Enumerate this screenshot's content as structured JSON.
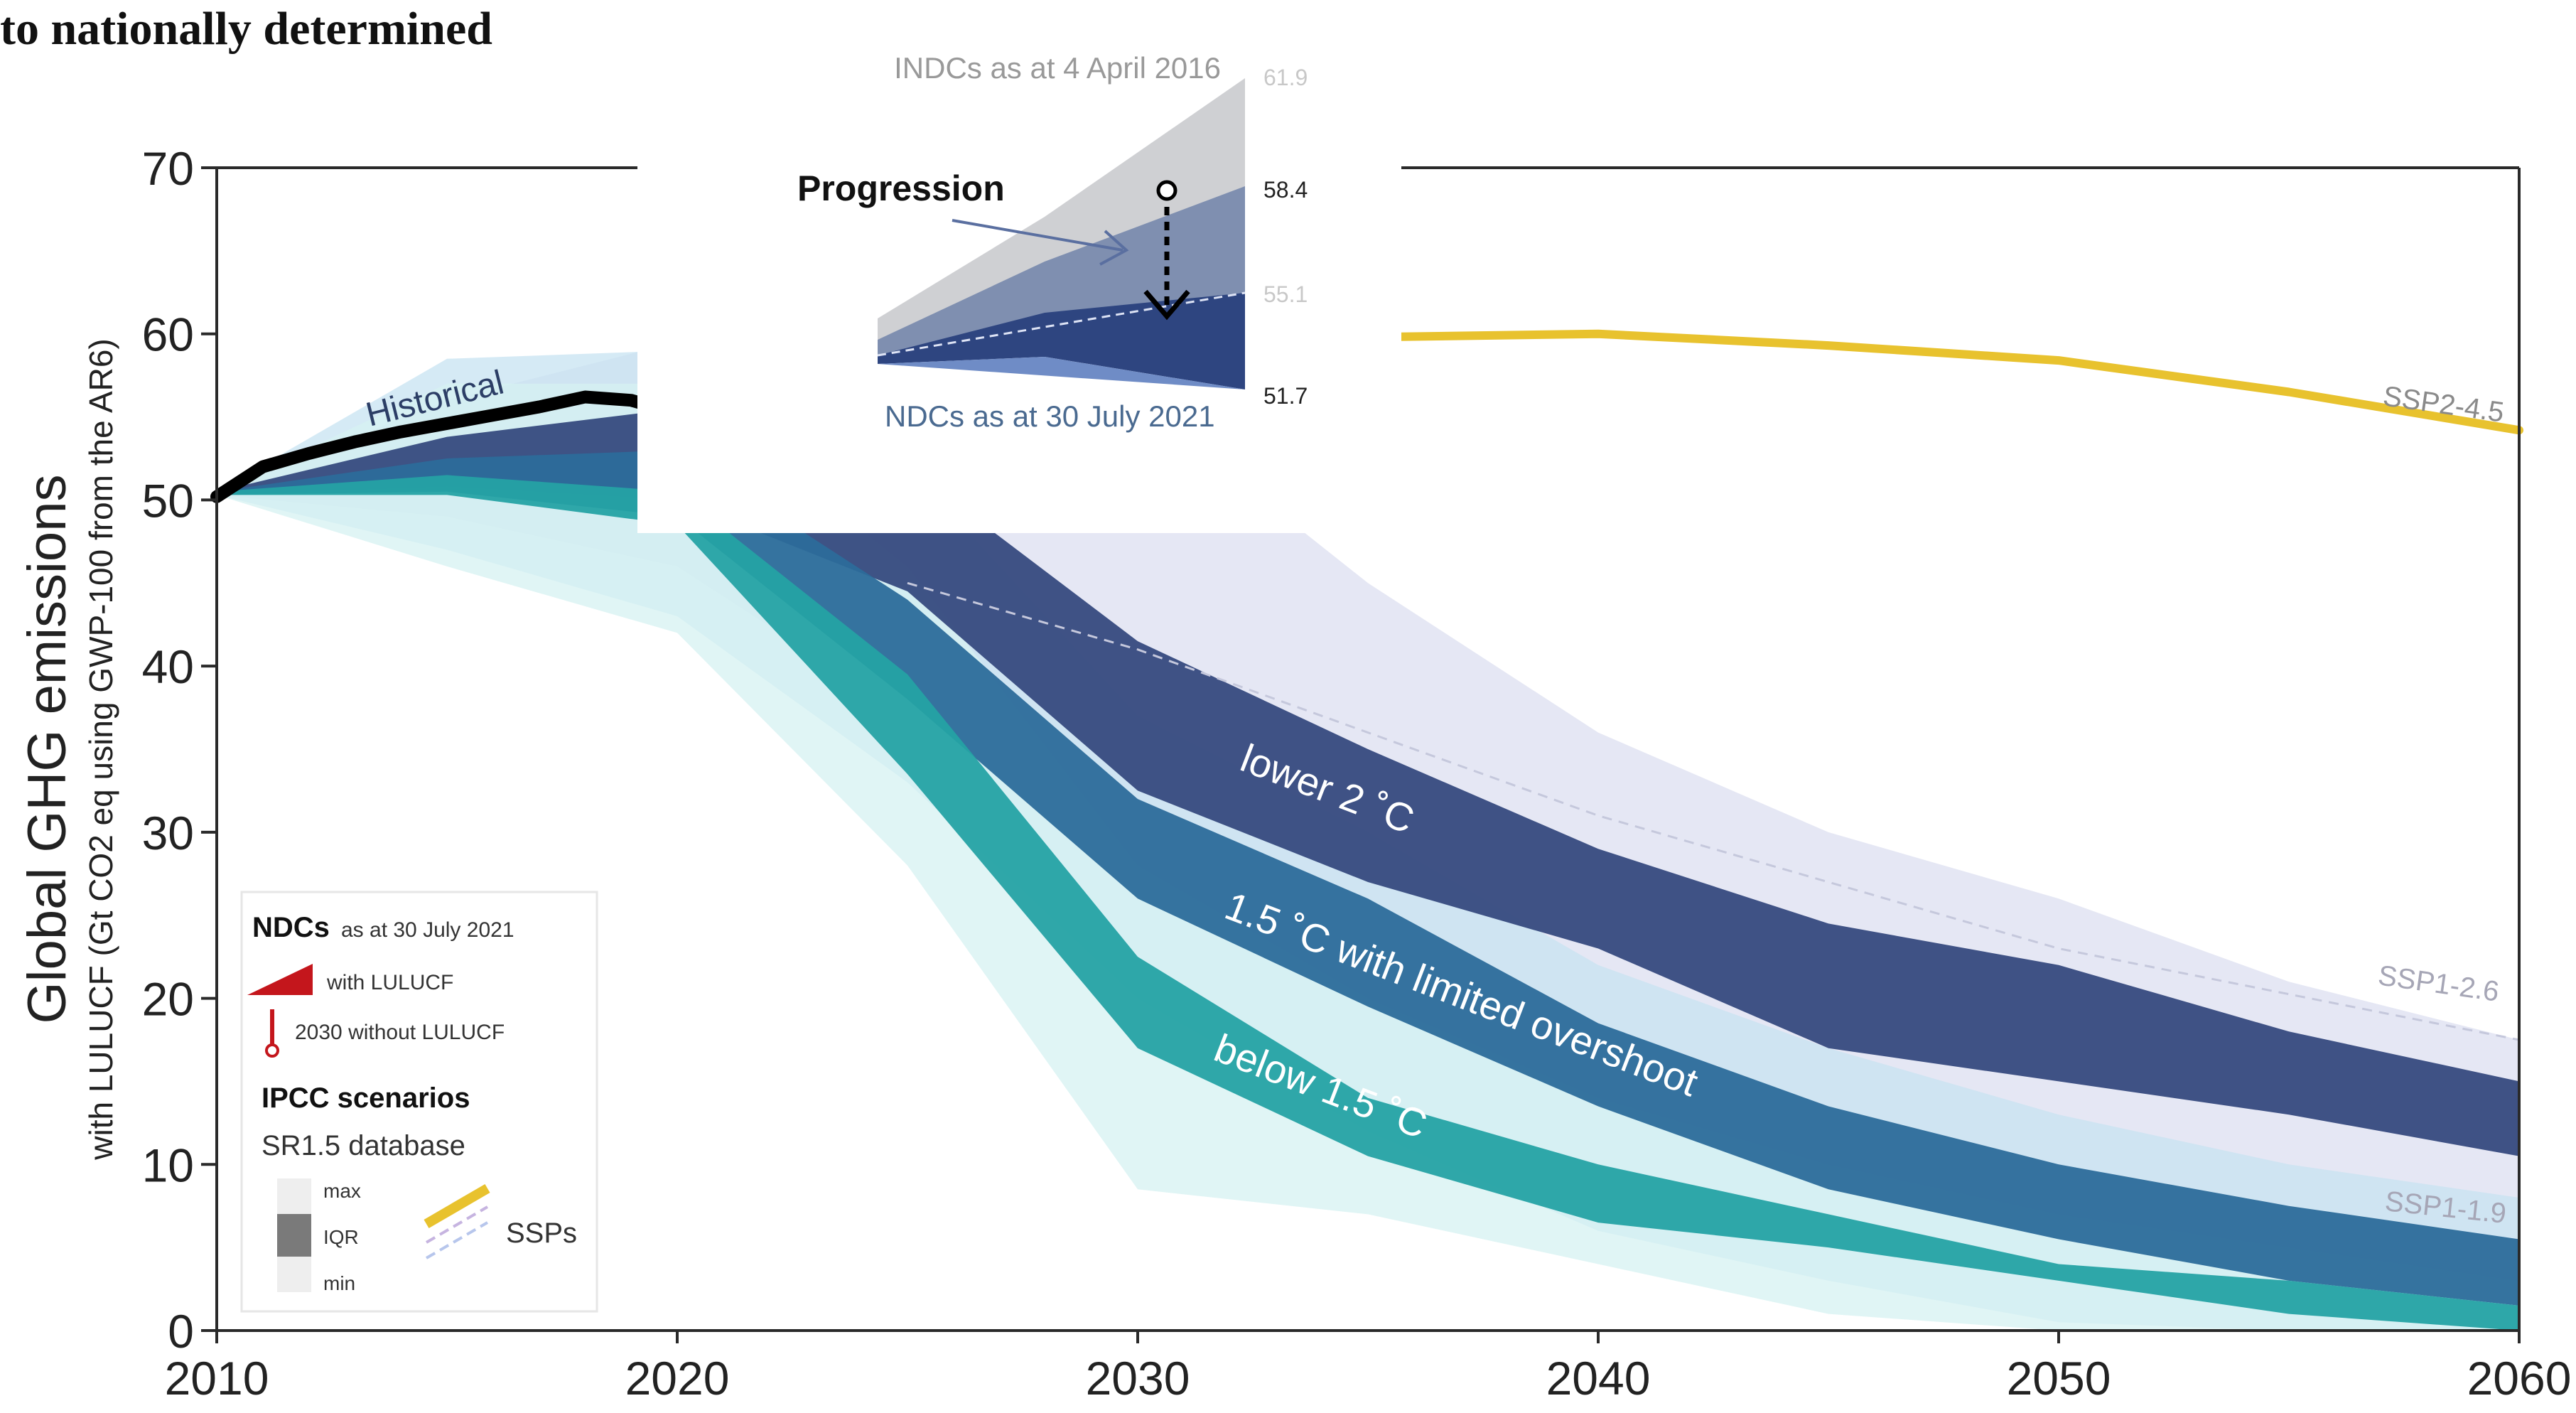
{
  "header": {
    "title_fragment": "to nationally determined"
  },
  "chart_data": {
    "type": "area",
    "xlabel": "",
    "ylabel": "Global GHG emissions",
    "ylabel_sub": "with LULUCF (Gt CO2 eq using GWP-100 from the AR6)",
    "xlim": [
      2010,
      2060
    ],
    "ylim": [
      0,
      70
    ],
    "x_ticks": [
      2010,
      2020,
      2030,
      2040,
      2050,
      2060
    ],
    "y_ticks": [
      0,
      10,
      20,
      30,
      40,
      50,
      60,
      70
    ],
    "grid": false,
    "colors": {
      "historical": "#000000",
      "ssp_line": "#e8c22e",
      "lower2c": "#364a7e",
      "overshoot15": "#2c6b9a",
      "below15": "#25a2a4",
      "range_lower2c": "#dcdff0",
      "range_overshoot15": "#c7e3f1",
      "range_below15": "#d6f1f2",
      "inset_indc": "#cfd0d3",
      "inset_ndc": "#2e4580"
    },
    "series": [
      {
        "name": "Historical",
        "kind": "line",
        "points": [
          [
            2010,
            50.2
          ],
          [
            2011,
            52.0
          ],
          [
            2012,
            52.8
          ],
          [
            2013,
            53.5
          ],
          [
            2014,
            54.1
          ],
          [
            2015,
            54.6
          ],
          [
            2016,
            55.1
          ],
          [
            2017,
            55.6
          ],
          [
            2018,
            56.2
          ],
          [
            2019,
            56.0
          ],
          [
            2020,
            55.2
          ],
          [
            2021,
            57.5
          ],
          [
            2022,
            57.8
          ]
        ]
      },
      {
        "name": "SSP2-4.5",
        "kind": "line",
        "points": [
          [
            2035,
            59.8
          ],
          [
            2040,
            60.0
          ],
          [
            2045,
            59.3
          ],
          [
            2050,
            58.4
          ],
          [
            2055,
            56.5
          ],
          [
            2060,
            54.2
          ]
        ]
      },
      {
        "name": "lower 2 °C",
        "kind": "band",
        "upper": [
          [
            2010,
            50.5
          ],
          [
            2015,
            53.8
          ],
          [
            2020,
            55.5
          ],
          [
            2025,
            52.0
          ],
          [
            2030,
            41.5
          ],
          [
            2035,
            35.0
          ],
          [
            2040,
            29.0
          ],
          [
            2045,
            24.5
          ],
          [
            2050,
            22.0
          ],
          [
            2055,
            18.0
          ],
          [
            2060,
            15.0
          ]
        ],
        "lower": [
          [
            2010,
            50.3
          ],
          [
            2015,
            50.8
          ],
          [
            2020,
            50.0
          ],
          [
            2025,
            44.5
          ],
          [
            2030,
            32.5
          ],
          [
            2035,
            27.0
          ],
          [
            2040,
            23.0
          ],
          [
            2045,
            17.0
          ],
          [
            2050,
            15.0
          ],
          [
            2055,
            13.0
          ],
          [
            2060,
            10.5
          ]
        ]
      },
      {
        "name": "1.5 °C with limited overshoot",
        "kind": "band",
        "upper": [
          [
            2010,
            50.5
          ],
          [
            2015,
            52.5
          ],
          [
            2020,
            53.0
          ],
          [
            2025,
            44.0
          ],
          [
            2030,
            32.0
          ],
          [
            2035,
            26.0
          ],
          [
            2040,
            18.5
          ],
          [
            2045,
            13.5
          ],
          [
            2050,
            10.0
          ],
          [
            2055,
            7.5
          ],
          [
            2060,
            5.5
          ]
        ],
        "lower": [
          [
            2010,
            50.3
          ],
          [
            2015,
            50.5
          ],
          [
            2020,
            49.0
          ],
          [
            2025,
            38.0
          ],
          [
            2030,
            26.0
          ],
          [
            2035,
            19.5
          ],
          [
            2040,
            13.5
          ],
          [
            2045,
            8.5
          ],
          [
            2050,
            5.5
          ],
          [
            2055,
            3.0
          ],
          [
            2060,
            1.5
          ]
        ]
      },
      {
        "name": "below 1.5 °C",
        "kind": "band",
        "upper": [
          [
            2010,
            50.5
          ],
          [
            2015,
            51.5
          ],
          [
            2020,
            50.5
          ],
          [
            2025,
            39.5
          ],
          [
            2030,
            22.5
          ],
          [
            2035,
            14.0
          ],
          [
            2040,
            10.0
          ],
          [
            2045,
            7.0
          ],
          [
            2050,
            4.0
          ],
          [
            2055,
            3.0
          ],
          [
            2060,
            1.5
          ]
        ],
        "lower": [
          [
            2010,
            50.3
          ],
          [
            2015,
            50.3
          ],
          [
            2020,
            48.5
          ],
          [
            2025,
            33.5
          ],
          [
            2030,
            17.0
          ],
          [
            2035,
            10.5
          ],
          [
            2040,
            6.5
          ],
          [
            2045,
            5.0
          ],
          [
            2050,
            3.0
          ],
          [
            2055,
            1.0
          ],
          [
            2060,
            -2.0
          ]
        ]
      },
      {
        "name": "range lower 2 °C",
        "kind": "range",
        "upper": [
          [
            2010,
            50.5
          ],
          [
            2015,
            56.0
          ],
          [
            2020,
            59.5
          ],
          [
            2025,
            59.0
          ],
          [
            2030,
            56.0
          ],
          [
            2035,
            45.0
          ],
          [
            2040,
            36.0
          ],
          [
            2045,
            30.0
          ],
          [
            2050,
            26.0
          ],
          [
            2055,
            21.0
          ],
          [
            2060,
            17.5
          ]
        ],
        "lower": [
          [
            2010,
            50.3
          ],
          [
            2015,
            49.0
          ],
          [
            2020,
            46.0
          ],
          [
            2025,
            37.0
          ],
          [
            2030,
            28.0
          ],
          [
            2035,
            22.0
          ],
          [
            2040,
            17.0
          ],
          [
            2045,
            12.0
          ],
          [
            2050,
            9.0
          ],
          [
            2055,
            6.0
          ],
          [
            2060,
            4.0
          ]
        ]
      },
      {
        "name": "range 1.5 °C with limited overshoot",
        "kind": "range",
        "upper": [
          [
            2010,
            50.5
          ],
          [
            2015,
            58.5
          ],
          [
            2020,
            59.0
          ],
          [
            2025,
            52.0
          ],
          [
            2030,
            37.0
          ],
          [
            2035,
            30.0
          ],
          [
            2040,
            22.0
          ],
          [
            2045,
            17.0
          ],
          [
            2050,
            13.0
          ],
          [
            2055,
            10.0
          ],
          [
            2060,
            8.0
          ]
        ],
        "lower": [
          [
            2010,
            50.3
          ],
          [
            2015,
            47.0
          ],
          [
            2020,
            43.0
          ],
          [
            2025,
            33.0
          ],
          [
            2030,
            20.0
          ],
          [
            2035,
            12.0
          ],
          [
            2040,
            6.0
          ],
          [
            2045,
            3.0
          ],
          [
            2050,
            0.5
          ],
          [
            2055,
            -1.0
          ],
          [
            2060,
            -2.0
          ]
        ]
      },
      {
        "name": "range below 1.5 °C",
        "kind": "range",
        "upper": [
          [
            2010,
            50.5
          ],
          [
            2015,
            57.0
          ],
          [
            2020,
            57.0
          ],
          [
            2025,
            46.0
          ],
          [
            2030,
            28.0
          ],
          [
            2035,
            20.0
          ],
          [
            2040,
            14.0
          ],
          [
            2045,
            10.0
          ],
          [
            2050,
            7.0
          ],
          [
            2055,
            5.0
          ],
          [
            2060,
            3.0
          ]
        ],
        "lower": [
          [
            2010,
            50.3
          ],
          [
            2015,
            46.0
          ],
          [
            2020,
            42.0
          ],
          [
            2025,
            28.0
          ],
          [
            2030,
            8.5
          ],
          [
            2035,
            7.0
          ],
          [
            2040,
            4.0
          ],
          [
            2045,
            1.0
          ],
          [
            2050,
            -1.0
          ],
          [
            2055,
            -3.0
          ],
          [
            2060,
            -4.0
          ]
        ]
      }
    ],
    "annotations": {
      "historical": "Historical",
      "ssp245": "SSP2-4.5",
      "ssp126": "SSP1-2.6",
      "ssp119": "SSP1-1.9",
      "lower2c": "lower 2 ˚C",
      "overshoot15": "1.5 ˚C with limited overshoot",
      "below15": "below 1.5 ˚C"
    },
    "inset": {
      "indc_label": "INDCs as at 4 April 2016",
      "ndc_label": "NDCs as at 30 July 2021",
      "progression_label": "Progression",
      "values": [
        61.9,
        58.4,
        55.1,
        51.7
      ]
    },
    "legend": {
      "position": "bottom-left",
      "ndcs_title": "NDCs",
      "ndcs_date": "as at 30 July 2021",
      "with_lulucf": "with LULUCF",
      "without_lulucf": "2030 without LULUCF",
      "ipcc_title": "IPCC scenarios",
      "db_label": "SR1.5 database",
      "max_label": "max",
      "iqr_label": "IQR",
      "min_label": "min",
      "ssps_label": "SSPs"
    }
  }
}
